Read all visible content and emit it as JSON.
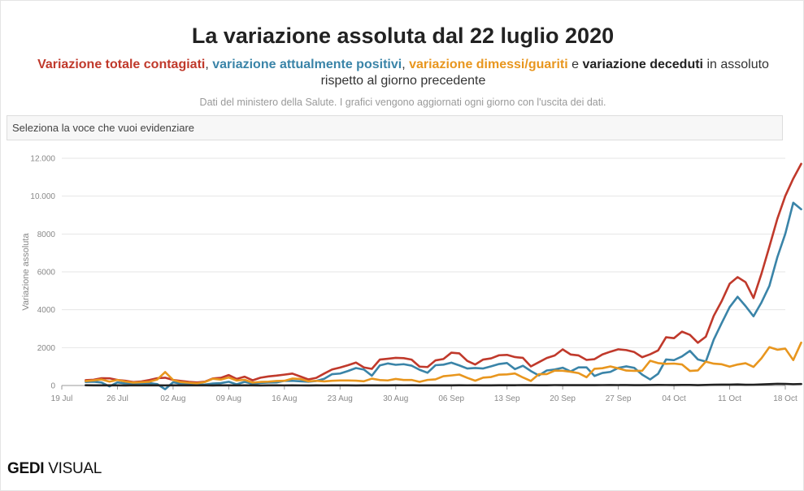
{
  "title": "La variazione assoluta dal 22 luglio 2020",
  "subtitle": {
    "s1": "Variazione totale contagiati",
    "sep1": ", ",
    "s2": "variazione attualmente positivi",
    "sep2": ", ",
    "s3": "variazione dimessi/guariti",
    "sep3": " e ",
    "s4": "variazione deceduti",
    "rest1": " in assoluto",
    "rest2": "rispetto al giorno precedente"
  },
  "note": "Dati del ministero della Salute. I grafici vengono aggiornati ogni giorno con l'uscita dei dati.",
  "selector_placeholder": "Seleziona la voce che vuoi evidenziare",
  "logo": {
    "part1": "GEDI",
    "part2": "VISUAL"
  },
  "colors": {
    "contagiati": "#c0392b",
    "positivi": "#3a84a8",
    "guariti": "#e8961e",
    "deceduti": "#222222"
  },
  "chart_data": {
    "type": "line",
    "title": "La variazione assoluta dal 22 luglio 2020",
    "xlabel": "",
    "ylabel": "Variazione assoluta",
    "x_start_date": "2020-07-19",
    "x_end_date": "2020-10-18",
    "ylim": [
      0,
      12000
    ],
    "yticks": [
      0,
      2000,
      4000,
      6000,
      8000,
      10000,
      12000
    ],
    "ytick_labels": [
      "0",
      "2000",
      "4000",
      "6000",
      "8000",
      "10.000",
      "12.000"
    ],
    "xtick_labels": [
      "19 Jul",
      "26 Jul",
      "02 Aug",
      "09 Aug",
      "16 Aug",
      "23 Aug",
      "30 Aug",
      "06 Sep",
      "13 Sep",
      "20 Sep",
      "27 Sep",
      "04 Oct",
      "11 Oct",
      "18 Oct"
    ],
    "x_start_index": 3,
    "grid": true,
    "series": [
      {
        "name": "Variazione totale contagiati",
        "color_key": "contagiati",
        "values": [
          280,
          306,
          386,
          379,
          295,
          250,
          181,
          212,
          289,
          386,
          410,
          295,
          238,
          190,
          159,
          201,
          374,
          405,
          552,
          347,
          465,
          275,
          412,
          481,
          522,
          574,
          629,
          477,
          320,
          403,
          629,
          845,
          947,
          1071,
          1210,
          953,
          878,
          1367,
          1411,
          1460,
          1444,
          1365,
          996,
          975,
          1326,
          1397,
          1733,
          1695,
          1297,
          1108,
          1370,
          1434,
          1597,
          1616,
          1501,
          1458,
          1008,
          1229,
          1452,
          1585,
          1907,
          1638,
          1587,
          1350,
          1392,
          1640,
          1786,
          1912,
          1869,
          1766,
          1494,
          1648,
          1851,
          2548,
          2499,
          2844,
          2677,
          2257,
          2578,
          3678,
          4458,
          5372,
          5724,
          5456,
          4619,
          5901,
          7332,
          8804,
          10010,
          10925,
          11705
        ]
      },
      {
        "name": "Variazione attualmente positivi",
        "color_key": "positivi",
        "values": [
          183,
          201,
          158,
          -48,
          165,
          109,
          88,
          73,
          127,
          76,
          -197,
          171,
          93,
          96,
          36,
          50,
          103,
          126,
          198,
          62,
          192,
          94,
          137,
          157,
          161,
          245,
          246,
          221,
          201,
          239,
          353,
          598,
          632,
          766,
          920,
          842,
          518,
          1059,
          1164,
          1093,
          1125,
          1046,
          830,
          671,
          1071,
          1101,
          1206,
          1060,
          898,
          924,
          898,
          1010,
          1134,
          1185,
          865,
          1043,
          762,
          531,
          792,
          847,
          939,
          743,
          958,
          959,
          503,
          662,
          718,
          931,
          1009,
          931,
          573,
          319,
          619,
          1374,
          1339,
          1537,
          1829,
          1379,
          1262,
          2422,
          3295,
          4140,
          4685,
          4194,
          3654,
          4384,
          5265,
          6776,
          8011,
          9652,
          9306
        ]
      },
      {
        "name": "Variazione dimessi/guariti",
        "color_key": "guariti",
        "values": [
          235,
          269,
          318,
          205,
          296,
          209,
          152,
          174,
          196,
          314,
          712,
          291,
          178,
          144,
          112,
          183,
          356,
          312,
          423,
          263,
          301,
          156,
          188,
          204,
          239,
          248,
          365,
          345,
          225,
          246,
          217,
          249,
          266,
          266,
          256,
          224,
          362,
          288,
          268,
          346,
          292,
          294,
          191,
          295,
          325,
          489,
          531,
          579,
          404,
          253,
          414,
          448,
          572,
          588,
          633,
          424,
          239,
          597,
          603,
          783,
          777,
          727,
          654,
          436,
          882,
          913,
          1006,
          903,
          789,
          773,
          777,
          1306,
          1183,
          1144,
          1157,
          1113,
          769,
          794,
          1257,
          1153,
          1121,
          997,
          1107,
          1176,
          981,
          1435,
          2024,
          1890,
          1947,
          1342,
          2263
        ]
      },
      {
        "name": "Variazione deceduti",
        "color_key": "deceduti",
        "values": [
          15,
          9,
          6,
          8,
          6,
          4,
          11,
          5,
          10,
          10,
          5,
          7,
          6,
          6,
          5,
          6,
          4,
          11,
          7,
          5,
          8,
          6,
          3,
          6,
          6,
          5,
          7,
          5,
          4,
          6,
          5,
          9,
          8,
          9,
          4,
          8,
          6,
          7,
          9,
          12,
          11,
          13,
          10,
          7,
          10,
          7,
          9,
          12,
          11,
          14,
          10,
          8,
          13,
          14,
          15,
          20,
          17,
          14,
          13,
          21,
          20,
          18,
          20,
          19,
          18,
          21,
          23,
          22,
          23,
          19,
          17,
          23,
          30,
          27,
          24,
          31,
          28,
          19,
          29,
          40,
          44,
          47,
          55,
          41,
          43,
          57,
          74,
          91,
          83,
          69,
          77
        ]
      }
    ]
  }
}
